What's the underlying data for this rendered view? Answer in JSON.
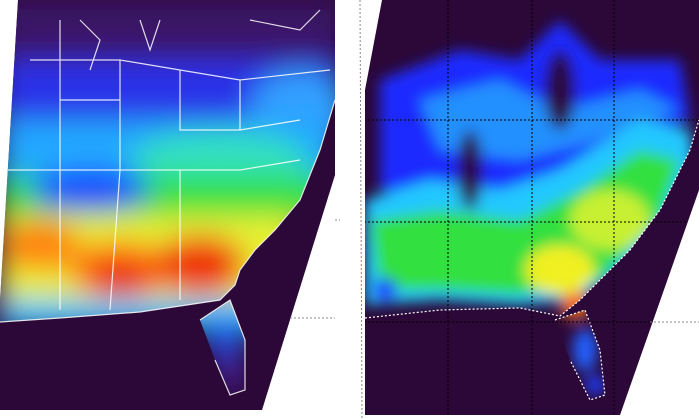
{
  "colormap": {
    "background": "#2c0838",
    "purple": "#4a1a7a",
    "blue": "#1a2cff",
    "cyan": "#20d8ff",
    "green": "#20e040",
    "yellow": "#f0f020",
    "orange": "#ff9010",
    "red": "#f02010",
    "coastline": "#ffffff",
    "gridline": "#000000"
  },
  "panels": [
    {
      "id": "left",
      "style": "smoothed precipitation field"
    },
    {
      "id": "right",
      "style": "contoured precipitation field"
    }
  ]
}
